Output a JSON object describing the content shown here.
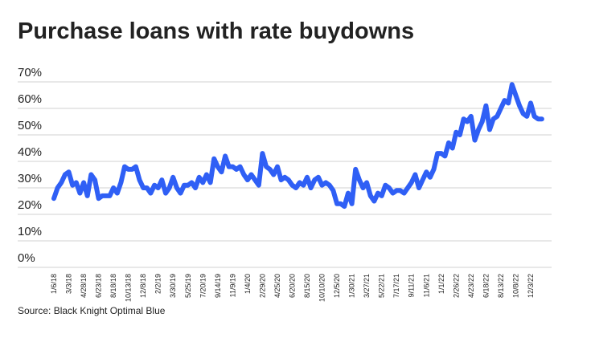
{
  "chart_data": {
    "type": "line",
    "title": "Purchase loans with rate buydowns",
    "source": "Source: Black Knight Optimal Blue",
    "categories": [
      "1/6/18",
      null,
      null,
      null,
      "3/3/18",
      null,
      null,
      null,
      "4/28/18",
      null,
      null,
      null,
      "6/23/18",
      null,
      null,
      null,
      "8/18/18",
      null,
      null,
      null,
      "10/13/18",
      null,
      null,
      null,
      "12/8/18",
      null,
      null,
      null,
      "2/2/19",
      null,
      null,
      null,
      "3/30/19",
      null,
      null,
      null,
      "5/25/19",
      null,
      null,
      null,
      "7/20/19",
      null,
      null,
      null,
      "9/14/19",
      null,
      null,
      null,
      "11/9/19",
      null,
      null,
      null,
      "1/4/20",
      null,
      null,
      null,
      "2/29/20",
      null,
      null,
      null,
      "4/25/20",
      null,
      null,
      null,
      "6/20/20",
      null,
      null,
      null,
      "8/15/20",
      null,
      null,
      null,
      "10/10/20",
      null,
      null,
      null,
      "12/5/20",
      null,
      null,
      null,
      "1/30/21",
      null,
      null,
      null,
      "3/27/21",
      null,
      null,
      null,
      "5/22/21",
      null,
      null,
      null,
      "7/17/21",
      null,
      null,
      null,
      "9/11/21",
      null,
      null,
      null,
      "11/6/21",
      null,
      null,
      null,
      "1/1/22",
      null,
      null,
      null,
      "2/26/22",
      null,
      null,
      null,
      "4/23/22",
      null,
      null,
      null,
      "6/18/22",
      null,
      null,
      null,
      "8/13/22",
      null,
      null,
      null,
      "10/8/22",
      null,
      null,
      null,
      "12/3/22",
      null,
      null,
      null
    ],
    "series": [
      {
        "name": "Purchase loans with rate buydowns",
        "color": "#2f5ff5",
        "values": [
          26,
          30,
          32,
          35,
          36,
          31,
          32,
          28,
          32,
          27,
          35,
          33,
          26,
          27,
          27,
          27,
          30,
          28,
          32,
          38,
          37,
          37,
          38,
          33,
          30,
          30,
          28,
          31,
          30,
          33,
          28,
          30,
          34,
          30,
          28,
          31,
          31,
          32,
          30,
          34,
          32,
          35,
          32,
          41,
          38,
          36,
          42,
          38,
          38,
          37,
          38,
          35,
          33,
          35,
          33,
          31,
          43,
          38,
          37,
          35,
          38,
          33,
          34,
          33,
          31,
          30,
          32,
          31,
          34,
          30,
          33,
          34,
          31,
          32,
          31,
          29,
          24,
          24,
          23,
          28,
          24,
          37,
          33,
          30,
          32,
          27,
          25,
          28,
          27,
          31,
          30,
          28,
          29,
          29,
          28,
          30,
          32,
          35,
          30,
          33,
          36,
          34,
          37,
          43,
          43,
          42,
          47,
          45,
          51,
          50,
          56,
          55,
          57,
          48,
          52,
          55,
          61,
          52,
          56,
          57,
          60,
          63,
          62,
          69,
          65,
          61,
          58,
          57,
          62,
          57,
          56,
          56
        ]
      }
    ],
    "ylim": [
      0,
      70
    ],
    "yticks": [
      {
        "value": 0,
        "label": "0%"
      },
      {
        "value": 10,
        "label": "10%"
      },
      {
        "value": 20,
        "label": "20%"
      },
      {
        "value": 30,
        "label": "30%"
      },
      {
        "value": 40,
        "label": "40%"
      },
      {
        "value": 50,
        "label": "50%"
      },
      {
        "value": 60,
        "label": "60%"
      },
      {
        "value": 70,
        "label": "70%"
      }
    ],
    "grid": true
  }
}
